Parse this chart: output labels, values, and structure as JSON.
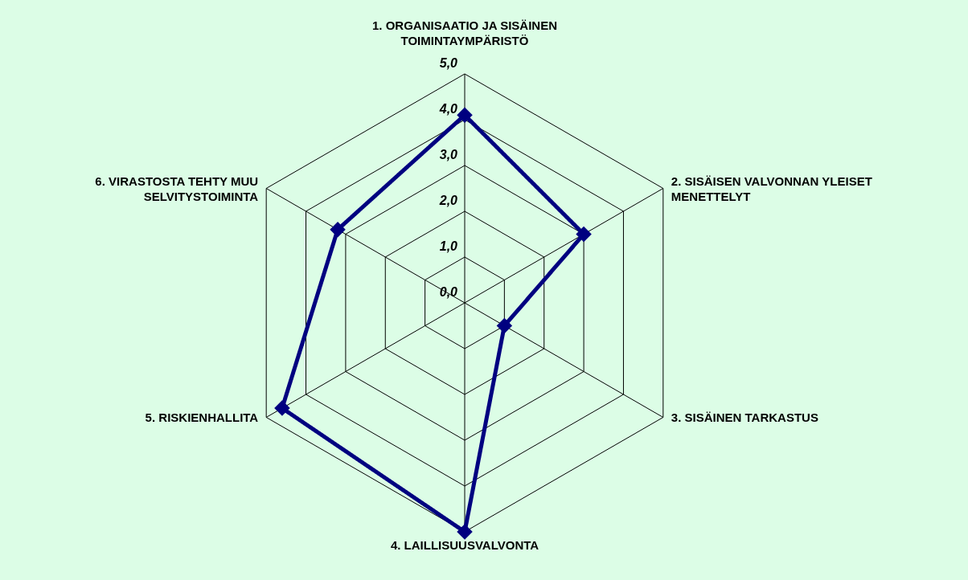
{
  "chart_data": {
    "type": "radar",
    "categories": [
      "1. ORGANISAATIO JA SISÄINEN TOIMINTAYMPÄRISTÖ",
      "2. SISÄISEN VALVONNAN YLEISET MENETTELYT",
      "3. SISÄINEN TARKASTUS",
      "4. LAILLISUUSVALVONTA",
      "5. RISKIENHALLITA",
      "6. VIRASTOSTA TEHTY MUU SELVITYSTOIMINTA"
    ],
    "series": [
      {
        "color": "#000080",
        "values": [
          4.1,
          3.0,
          1.0,
          5.0,
          4.6,
          3.2
        ]
      }
    ],
    "ylim": [
      0,
      5
    ],
    "yticks": [
      {
        "value": 0,
        "label": "0,0"
      },
      {
        "value": 1,
        "label": "1,0"
      },
      {
        "value": 2,
        "label": "2,0"
      },
      {
        "value": 3,
        "label": "3,0"
      },
      {
        "value": 4,
        "label": "4,0"
      },
      {
        "value": 5,
        "label": "5,0"
      }
    ],
    "grid": true,
    "marker": "diamond",
    "line_style": "solid"
  }
}
